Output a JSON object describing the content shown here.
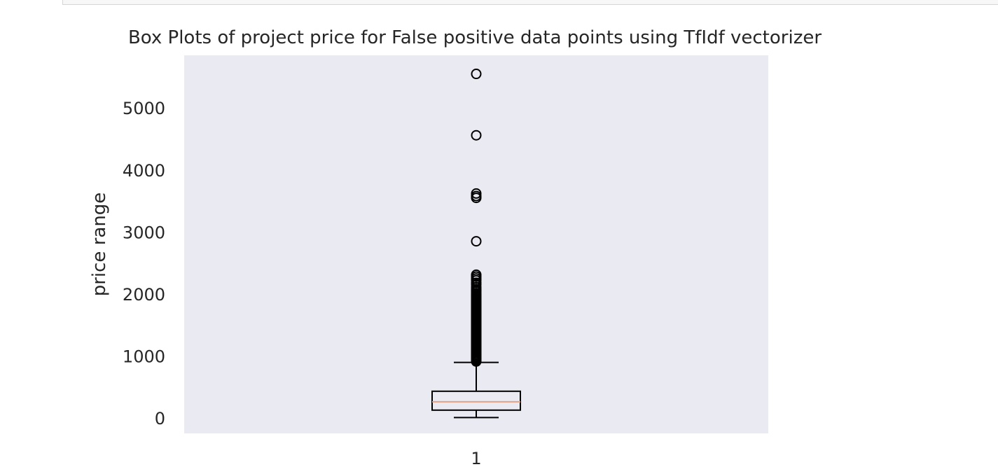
{
  "chart_data": {
    "type": "box",
    "title": "Box Plots of project price for False positive data points using TfIdf vectorizer",
    "xlabel": "",
    "ylabel": "price range",
    "categories": [
      "1"
    ],
    "ylim": [
      -250,
      5850
    ],
    "yticks": [
      0,
      1000,
      2000,
      3000,
      4000,
      5000
    ],
    "ytick_labels": [
      "0",
      "1000",
      "2000",
      "3000",
      "4000",
      "5000"
    ],
    "grid": false,
    "background": "#eaeaf2",
    "box": {
      "category": "1",
      "whisker_low": 5,
      "q1": 125,
      "median": 260,
      "q3": 430,
      "whisker_high": 895,
      "outliers": [
        5550,
        4560,
        3620,
        3580,
        3550,
        2850,
        2310,
        2280,
        2250,
        2220,
        2180,
        2150,
        2110,
        2080,
        2060,
        2040,
        2010,
        1990,
        1970,
        1950,
        1930,
        1910,
        1890,
        1870,
        1850,
        1830,
        1810,
        1790,
        1770,
        1750,
        1730,
        1710,
        1690,
        1670,
        1650,
        1630,
        1610,
        1590,
        1570,
        1550,
        1530,
        1510,
        1490,
        1470,
        1450,
        1430,
        1410,
        1390,
        1370,
        1350,
        1330,
        1310,
        1290,
        1270,
        1250,
        1230,
        1210,
        1190,
        1170,
        1150,
        1130,
        1110,
        1090,
        1070,
        1050,
        1030,
        1010,
        990,
        970,
        950,
        930,
        910
      ]
    },
    "colors": {
      "box": "#000000",
      "median": "#e8a082",
      "outlier": "#000000"
    }
  }
}
